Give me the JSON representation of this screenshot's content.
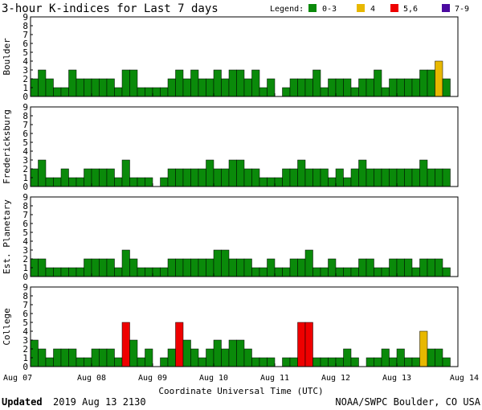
{
  "title": "3-hour K-indices for Last 7 days",
  "legend": {
    "label": "Legend:",
    "items": [
      {
        "label": "0-3",
        "color": "#0a8a0a"
      },
      {
        "label": "4",
        "color": "#e8b800"
      },
      {
        "label": "5,6",
        "color": "#ee0000"
      },
      {
        "label": "7-9",
        "color": "#4b0aa0"
      }
    ]
  },
  "xlabel": "Coordinate Universal Time (UTC)",
  "footer": {
    "updated_label": "Updated",
    "updated_value": "2019 Aug 13 2130",
    "credit": "NOAA/SWPC Boulder, CO USA"
  },
  "chart_data": {
    "type": "bar",
    "x_tick_labels": [
      "Aug 07",
      "Aug 08",
      "Aug 09",
      "Aug 10",
      "Aug 11",
      "Aug 12",
      "Aug 13",
      "Aug 14"
    ],
    "y_ticks": [
      0,
      1,
      2,
      3,
      4,
      5,
      6,
      7,
      8,
      9
    ],
    "ylim": [
      0,
      9
    ],
    "bins_per_day": 8,
    "days": 7,
    "color_scale": {
      "0-3": "#0a8a0a",
      "4": "#e8b800",
      "5,6": "#ee0000",
      "7-9": "#4b0aa0"
    },
    "panels": [
      {
        "name": "Boulder",
        "values": [
          2,
          3,
          2,
          1,
          1,
          3,
          2,
          2,
          2,
          2,
          2,
          1,
          3,
          3,
          1,
          1,
          1,
          1,
          2,
          3,
          2,
          3,
          2,
          2,
          3,
          2,
          3,
          3,
          2,
          3,
          1,
          2,
          0,
          1,
          2,
          2,
          2,
          3,
          1,
          2,
          2,
          2,
          1,
          2,
          2,
          3,
          1,
          2,
          2,
          2,
          2,
          3,
          3,
          4,
          2,
          0
        ]
      },
      {
        "name": "Fredericksburg",
        "values": [
          2,
          3,
          1,
          1,
          2,
          1,
          1,
          2,
          2,
          2,
          2,
          1,
          3,
          1,
          1,
          1,
          0,
          1,
          2,
          2,
          2,
          2,
          2,
          3,
          2,
          2,
          3,
          3,
          2,
          2,
          1,
          1,
          1,
          2,
          2,
          3,
          2,
          2,
          2,
          1,
          2,
          1,
          2,
          3,
          2,
          2,
          2,
          2,
          2,
          2,
          2,
          3,
          2,
          2,
          2,
          0
        ]
      },
      {
        "name": "Est. Planetary",
        "values": [
          2,
          2,
          1,
          1,
          1,
          1,
          1,
          2,
          2,
          2,
          2,
          1,
          3,
          2,
          1,
          1,
          1,
          1,
          2,
          2,
          2,
          2,
          2,
          2,
          3,
          3,
          2,
          2,
          2,
          1,
          1,
          2,
          1,
          1,
          2,
          2,
          3,
          1,
          1,
          2,
          1,
          1,
          1,
          2,
          2,
          1,
          1,
          2,
          2,
          2,
          1,
          2,
          2,
          2,
          1,
          0
        ]
      },
      {
        "name": "College",
        "values": [
          3,
          2,
          1,
          2,
          2,
          2,
          1,
          1,
          2,
          2,
          2,
          1,
          5,
          3,
          1,
          2,
          0,
          1,
          2,
          5,
          3,
          2,
          1,
          2,
          3,
          2,
          3,
          3,
          2,
          1,
          1,
          1,
          0,
          1,
          1,
          5,
          5,
          1,
          1,
          1,
          1,
          2,
          1,
          0,
          1,
          1,
          2,
          1,
          2,
          1,
          1,
          4,
          2,
          2,
          1,
          0
        ]
      }
    ]
  }
}
